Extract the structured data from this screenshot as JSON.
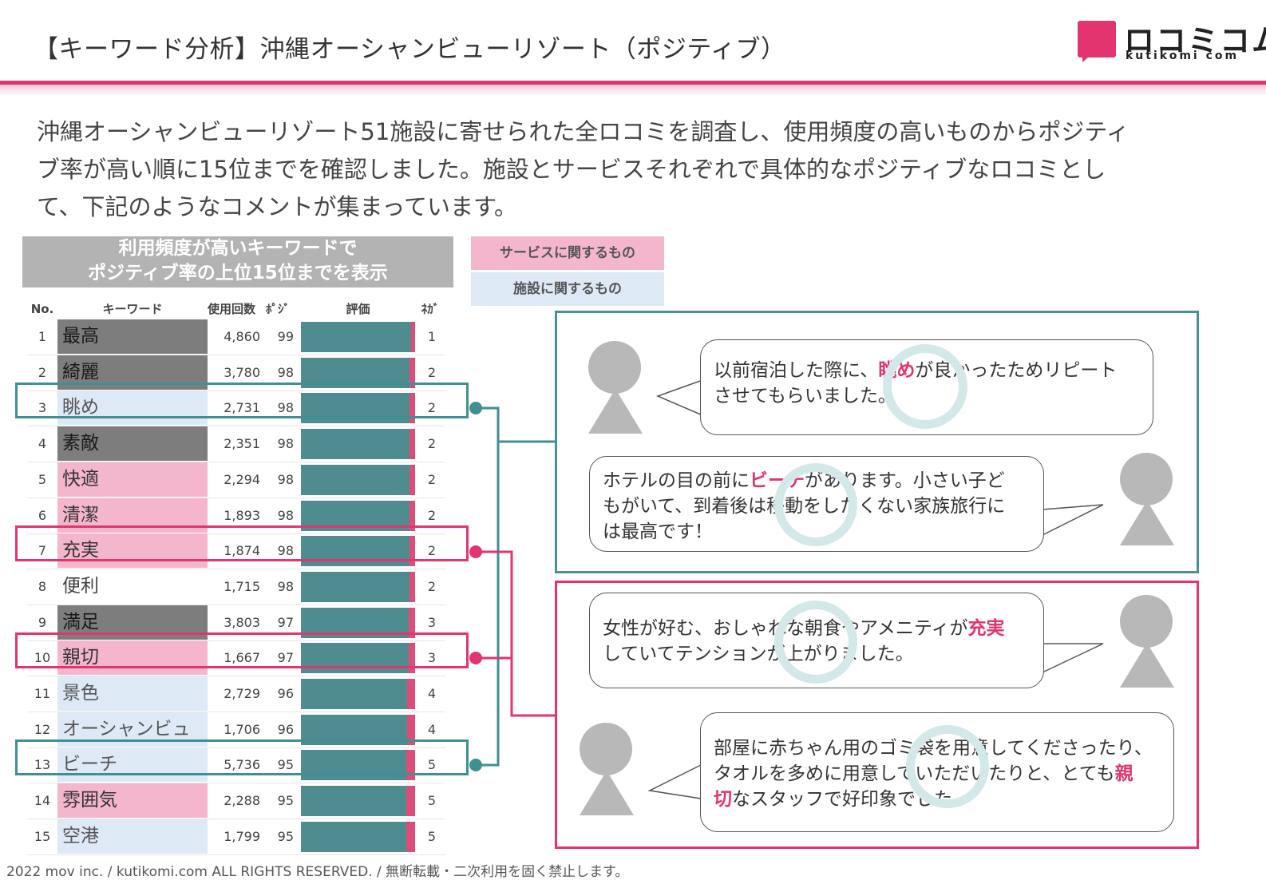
{
  "header": {
    "title": "【キーワード分析】沖縄オーシャンビューリゾート（ポジティブ）",
    "logo_text": "ロコミコム",
    "logo_sub": "kutikomi com"
  },
  "intro": {
    "line1": "沖縄オーシャンビューリゾート51施設に寄せられた全ロコミを調査し、使用頻度の高いものからポジティ",
    "line2": "ブ率が高い順に15位までを確認しました。施設とサービスそれぞれで具体的なポジティブなロコミとし",
    "line3": "て、下記のようなコメントが集まっています。"
  },
  "caption": {
    "line1": "利用頻度が高いキーワードで",
    "line2": "ポジティブ率の上位15位までを表示"
  },
  "legend": {
    "service": "サービスに関するもの",
    "facility": "施設に関するもの"
  },
  "table": {
    "headers": {
      "no": "No.",
      "keyword": "キーワード",
      "count": "使用回数",
      "positive": "ﾎﾟｼﾞ",
      "rating": "評価",
      "negative": "ﾈｶﾞ"
    },
    "rows": [
      {
        "no": "1",
        "keyword": "最高",
        "count": "4,860",
        "positive": "99",
        "negative": "1",
        "category": "gray"
      },
      {
        "no": "2",
        "keyword": "綺麗",
        "count": "3,780",
        "positive": "98",
        "negative": "2",
        "category": "gray"
      },
      {
        "no": "3",
        "keyword": "眺め",
        "count": "2,731",
        "positive": "98",
        "negative": "2",
        "category": "facility"
      },
      {
        "no": "4",
        "keyword": "素敵",
        "count": "2,351",
        "positive": "98",
        "negative": "2",
        "category": "gray"
      },
      {
        "no": "5",
        "keyword": "快適",
        "count": "2,294",
        "positive": "98",
        "negative": "2",
        "category": "service"
      },
      {
        "no": "6",
        "keyword": "清潔",
        "count": "1,893",
        "positive": "98",
        "negative": "2",
        "category": "service"
      },
      {
        "no": "7",
        "keyword": "充実",
        "count": "1,874",
        "positive": "98",
        "negative": "2",
        "category": "service"
      },
      {
        "no": "8",
        "keyword": "便利",
        "count": "1,715",
        "positive": "98",
        "negative": "2",
        "category": "none"
      },
      {
        "no": "9",
        "keyword": "満足",
        "count": "3,803",
        "positive": "97",
        "negative": "3",
        "category": "gray"
      },
      {
        "no": "10",
        "keyword": "親切",
        "count": "1,667",
        "positive": "97",
        "negative": "3",
        "category": "service"
      },
      {
        "no": "11",
        "keyword": "景色",
        "count": "2,729",
        "positive": "96",
        "negative": "4",
        "category": "facility"
      },
      {
        "no": "12",
        "keyword": "オーシャンビュ",
        "count": "1,706",
        "positive": "96",
        "negative": "4",
        "category": "facility"
      },
      {
        "no": "13",
        "keyword": "ビーチ",
        "count": "5,736",
        "positive": "95",
        "negative": "5",
        "category": "facility"
      },
      {
        "no": "14",
        "keyword": "雰囲気",
        "count": "2,288",
        "positive": "95",
        "negative": "5",
        "category": "service"
      },
      {
        "no": "15",
        "keyword": "空港",
        "count": "1,799",
        "positive": "95",
        "negative": "5",
        "category": "facility"
      }
    ],
    "highlight_teal_rows": [
      3,
      13
    ],
    "highlight_pink_rows": [
      7,
      10
    ]
  },
  "comments": {
    "c1": {
      "before": "以前宿泊した際に、",
      "keyword": "眺め",
      "after": "が良かったためリピート",
      "line2": "させてもらいました。"
    },
    "c2": {
      "before": "ホテルの目の前に",
      "keyword": "ビーチ",
      "after": "があります。小さい子ど",
      "line2": "もがいて、到着後は移動をしたくない家族旅行に",
      "line3": "は最高です！"
    },
    "c3": {
      "before": "女性が好む、おしゃれな朝食やアメニティが",
      "keyword": "充実",
      "line2": "していてテンションが上がりました。"
    },
    "c4": {
      "line1": "部屋に赤ちゃん用のゴミ袋を用意してくださったり、",
      "line2_before": "タオルを多めに用意していただいたりと、とても",
      "keyword_a": "親",
      "keyword_b": "切",
      "line3_after": "なスタッフで好印象でした。"
    }
  },
  "footer": "2022 mov inc. / kutikomi.com ALL RIGHTS RESERVED. / 無断転載・二次利用を固く禁止します。",
  "colors": {
    "accent_pink": "#e2346f",
    "teal": "#4f8c8f",
    "service_pink": "#f4b6cd",
    "facility_blue": "#dde9f4",
    "neutral_gray": "#7d7d7d"
  }
}
